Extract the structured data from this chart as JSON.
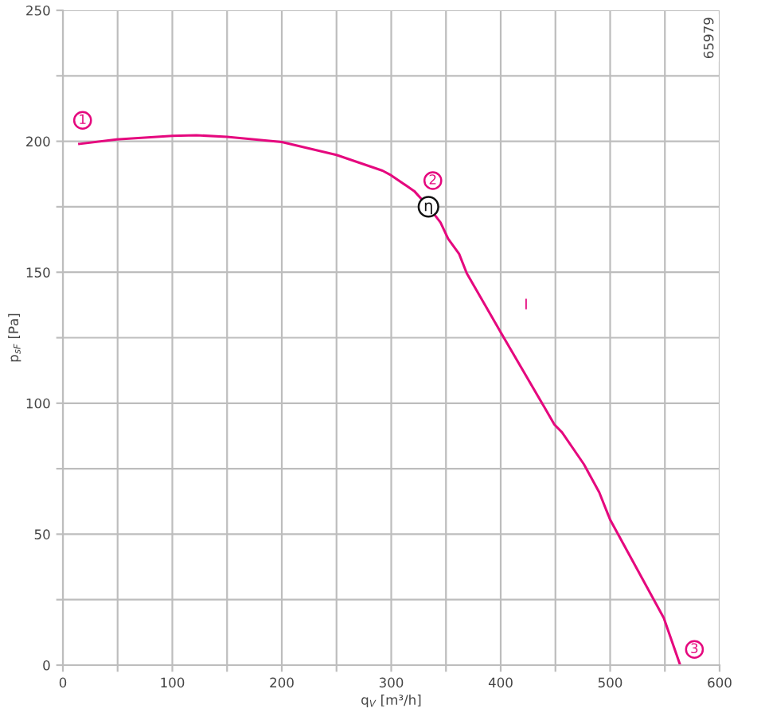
{
  "chart_data": {
    "type": "line",
    "xlabel": "q$_{V}$ [m³/h]",
    "ylabel": "p$_{sF}$ [Pa]",
    "series": [
      {
        "name": "I",
        "color": "#e5087e",
        "x": [
          15,
          49,
          100,
          122,
          150,
          200,
          250,
          292,
          300,
          321,
          334,
          345,
          352,
          362,
          369,
          401,
          440,
          449,
          456,
          476,
          490,
          500,
          549,
          564
        ],
        "values": [
          199,
          200.7,
          202.1,
          202.3,
          201.7,
          199.7,
          194.8,
          188.8,
          187,
          181,
          175,
          169,
          162.8,
          157,
          149.6,
          126.4,
          98.4,
          91.9,
          88.9,
          76.7,
          66,
          55.5,
          18,
          0
        ]
      }
    ],
    "xlim": [
      0,
      600
    ],
    "ylim": [
      0,
      250
    ],
    "xticks": [
      0,
      {
        "value": 50,
        "label": null
      },
      100,
      {
        "value": 150,
        "label": null
      },
      200,
      {
        "value": 250,
        "label": null
      },
      300,
      {
        "value": 350,
        "label": null
      },
      400,
      {
        "value": 450,
        "label": null
      },
      500,
      {
        "value": 550,
        "label": null
      },
      600
    ],
    "yticks": [
      0,
      {
        "value": 25,
        "label": null
      },
      50,
      {
        "value": 75,
        "label": null
      },
      100,
      {
        "value": 125,
        "label": null
      },
      150,
      {
        "value": 175,
        "label": null
      },
      200,
      {
        "value": 225,
        "label": null
      },
      250
    ],
    "grid": true,
    "line_style": "solid",
    "annotations": [
      {
        "text": "1",
        "x": 18,
        "y": 208
      },
      {
        "text": "2",
        "x": 338,
        "y": 185
      },
      {
        "text": "3",
        "x": 577,
        "y": 6
      },
      {
        "text": "η",
        "x": 334,
        "y": 175
      },
      "65979"
    ]
  }
}
